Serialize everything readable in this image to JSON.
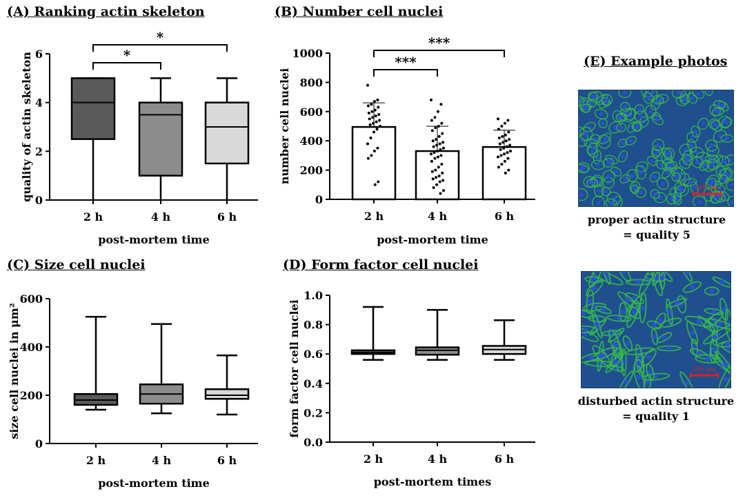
{
  "colors": {
    "box_2h": "#5a5a5a",
    "box_4h": "#8c8c8c",
    "box_6h": "#d9d9d9",
    "scale_bar": "#e02020",
    "photo_bg": "#1f4f8f",
    "actin": "#35b84a",
    "nucleus": "#2f4fd8"
  },
  "panels": {
    "E": {
      "title": "(E) Example photos",
      "photo1_caption_line1": "proper actin structure",
      "photo1_caption_line2": "= quality 5",
      "photo2_caption_line1": "disturbed actin structure",
      "photo2_caption_line2": "= quality 1",
      "scale_label_1": "100 μm",
      "scale_label_2": "100 μm"
    }
  },
  "chart_data": [
    {
      "id": "A",
      "type": "box",
      "title": "(A) Ranking actin skeleton",
      "xlabel": "post-mortem time",
      "ylabel": "quality of actin skeleton",
      "categories": [
        "2 h",
        "4 h",
        "6 h"
      ],
      "ylim": [
        0,
        6
      ],
      "yticks": [
        0,
        2,
        4,
        6
      ],
      "boxes": [
        {
          "min": 0,
          "q1": 2.5,
          "median": 4,
          "q3": 5,
          "max": 5
        },
        {
          "min": 0,
          "q1": 1,
          "median": 3.5,
          "q3": 4,
          "max": 5
        },
        {
          "min": 0,
          "q1": 1.5,
          "median": 3,
          "q3": 4,
          "max": 5
        }
      ],
      "significance": [
        {
          "from": 0,
          "to": 1,
          "label": "*"
        },
        {
          "from": 0,
          "to": 2,
          "label": "*"
        }
      ]
    },
    {
      "id": "B",
      "type": "bar",
      "title": "(B) Number cell nuclei",
      "xlabel": "post-mortem time",
      "ylabel": "number cell nuclei",
      "categories": [
        "2 h",
        "4 h",
        "6 h"
      ],
      "ylim": [
        0,
        1000
      ],
      "yticks": [
        0,
        200,
        400,
        600,
        800,
        1000
      ],
      "values": [
        495,
        330,
        358
      ],
      "sd": [
        165,
        170,
        115
      ],
      "points": [
        [
          780,
          680,
          670,
          650,
          640,
          630,
          610,
          600,
          590,
          580,
          570,
          560,
          550,
          540,
          530,
          520,
          510,
          500,
          480,
          460,
          420,
          380,
          350,
          330,
          300,
          280,
          120,
          100
        ],
        [
          680,
          650,
          600,
          560,
          540,
          520,
          500,
          490,
          470,
          450,
          430,
          410,
          400,
          390,
          380,
          370,
          360,
          350,
          340,
          330,
          320,
          310,
          300,
          290,
          280,
          260,
          240,
          220,
          200,
          190,
          180,
          160,
          150,
          140,
          130,
          120,
          100,
          80,
          60,
          40
        ],
        [
          550,
          540,
          520,
          500,
          480,
          460,
          440,
          430,
          420,
          410,
          400,
          390,
          380,
          370,
          360,
          350,
          340,
          330,
          320,
          310,
          300,
          290,
          280,
          260,
          240,
          220,
          200,
          180
        ]
      ],
      "significance": [
        {
          "from": 0,
          "to": 1,
          "label": "***"
        },
        {
          "from": 0,
          "to": 2,
          "label": "***"
        }
      ]
    },
    {
      "id": "C",
      "type": "box",
      "title": "(C) Size cell nuclei",
      "xlabel": "post-mortem time",
      "ylabel": "size cell nuclei in μm²",
      "categories": [
        "2 h",
        "4 h",
        "6 h"
      ],
      "ylim": [
        0,
        600
      ],
      "yticks": [
        0,
        200,
        400,
        600
      ],
      "boxes": [
        {
          "min": 140,
          "q1": 160,
          "median": 180,
          "q3": 205,
          "max": 525
        },
        {
          "min": 125,
          "q1": 165,
          "median": 205,
          "q3": 245,
          "max": 495
        },
        {
          "min": 120,
          "q1": 185,
          "median": 200,
          "q3": 225,
          "max": 365
        }
      ]
    },
    {
      "id": "D",
      "type": "box",
      "title": "(D) Form factor cell nuclei",
      "xlabel": "post-mortem times",
      "ylabel": "form factor cell nuclei",
      "categories": [
        "2 h",
        "4 h",
        "6 h"
      ],
      "ylim": [
        0,
        1
      ],
      "yticks": [
        "0.0",
        "0.2",
        "0.4",
        "0.6",
        "0.8",
        "1.0"
      ],
      "boxes": [
        {
          "min": 0.56,
          "q1": 0.6,
          "median": 0.61,
          "q3": 0.625,
          "max": 0.92
        },
        {
          "min": 0.56,
          "q1": 0.595,
          "median": 0.625,
          "q3": 0.645,
          "max": 0.9
        },
        {
          "min": 0.56,
          "q1": 0.6,
          "median": 0.63,
          "q3": 0.655,
          "max": 0.83
        }
      ]
    }
  ]
}
